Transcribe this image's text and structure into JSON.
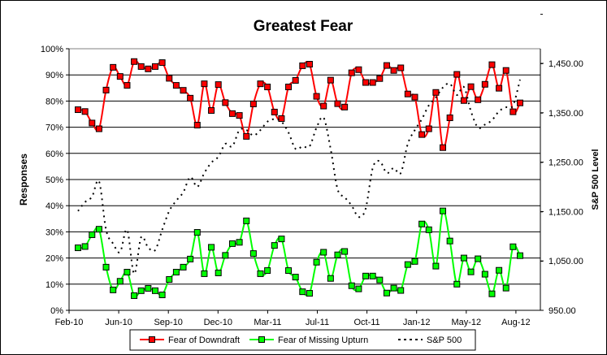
{
  "chart_data": {
    "type": "line",
    "title": "Greatest Fear",
    "ylabel": "Responses",
    "y2label": "S&P 500 Level",
    "ylim": [
      0,
      100
    ],
    "y2lim": [
      950,
      1500
    ],
    "yticks": [
      "0%",
      "10%",
      "20%",
      "30%",
      "40%",
      "50%",
      "60%",
      "70%",
      "80%",
      "90%",
      "100%"
    ],
    "y2ticks": [
      "950.00",
      "1,050.00",
      "1,150.00",
      "1,250.00",
      "1,350.00",
      "1,450.00"
    ],
    "xticks": [
      "Feb-10",
      "Jun-10",
      "Sep-10",
      "Dec-10",
      "Mar-11",
      "Jul-11",
      "Oct-11",
      "Jan-12",
      "May-12",
      "Aug-12"
    ],
    "grid": true,
    "legend_position": "bottom",
    "series": [
      {
        "name": "Fear of Downdraft",
        "axis": "left",
        "color": "#ff0000",
        "marker_fill": "#ff0000",
        "values": [
          76.7,
          76.0,
          71.6,
          69.4,
          84.2,
          92.9,
          89.4,
          86.0,
          95.1,
          93.2,
          92.3,
          93.2,
          94.7,
          88.7,
          86.0,
          84.1,
          81.1,
          70.8,
          86.6,
          76.4,
          86.3,
          79.4,
          75.2,
          74.5,
          66.5,
          78.9,
          86.6,
          85.4,
          75.8,
          73.3,
          85.4,
          87.9,
          93.5,
          94.1,
          81.8,
          78.1,
          88.0,
          79.0,
          77.7,
          90.8,
          92.0,
          87.1,
          87.1,
          88.6,
          93.6,
          91.7,
          92.7,
          82.7,
          81.5,
          67.2,
          69.4,
          83.3,
          62.2,
          73.6,
          90.2,
          80.2,
          85.5,
          80.5,
          86.4,
          93.9,
          84.9,
          91.7,
          75.9,
          79.3
        ]
      },
      {
        "name": "Fear of Missing Upturn",
        "axis": "left",
        "color": "#00ff00",
        "marker_fill": "#00ff00",
        "values": [
          23.9,
          24.4,
          28.9,
          31.0,
          16.5,
          7.8,
          11.1,
          14.6,
          5.6,
          7.5,
          8.4,
          7.5,
          5.9,
          11.8,
          14.6,
          16.5,
          19.6,
          29.8,
          14.0,
          24.1,
          14.3,
          21.0,
          25.5,
          26.0,
          34.2,
          21.7,
          14.0,
          15.2,
          24.8,
          27.3,
          15.2,
          12.7,
          7.1,
          6.5,
          18.4,
          22.2,
          12.2,
          21.2,
          22.5,
          9.4,
          8.2,
          13.1,
          13.1,
          11.6,
          6.6,
          8.5,
          7.6,
          17.5,
          18.7,
          33.0,
          30.8,
          16.9,
          38.0,
          26.5,
          10.0,
          20.0,
          14.7,
          19.7,
          13.8,
          6.3,
          15.3,
          8.5,
          24.3,
          20.9
        ]
      },
      {
        "name": "S&P 500",
        "axis": "right",
        "color": "#000000",
        "style": "dotted",
        "values": [
          1151,
          1169,
          1180,
          1211,
          1113,
          1085,
          1068,
          1113,
          1024,
          1098,
          1077,
          1072,
          1113,
          1151,
          1172,
          1189,
          1220,
          1200,
          1228,
          1249,
          1261,
          1287,
          1282,
          1315,
          1315,
          1304,
          1315,
          1332,
          1337,
          1332,
          1310,
          1277,
          1282,
          1282,
          1320,
          1340,
          1277,
          1195,
          1179,
          1162,
          1139,
          1156,
          1238,
          1252,
          1228,
          1238,
          1228,
          1287,
          1315,
          1337,
          1365,
          1381,
          1401,
          1409,
          1386,
          1402,
          1353,
          1320,
          1326,
          1335,
          1353,
          1361,
          1365,
          1417
        ]
      }
    ]
  }
}
